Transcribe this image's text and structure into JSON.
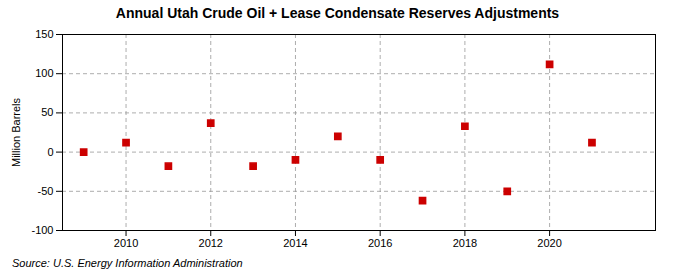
{
  "chart_data": {
    "type": "scatter",
    "title": "Annual Utah Crude Oil + Lease Condensate Reserves Adjustments",
    "ylabel": "Million Barrels",
    "annotation": "Source: U.S. Energy Information Administration",
    "x": [
      2009,
      2010,
      2011,
      2012,
      2013,
      2014,
      2015,
      2016,
      2017,
      2018,
      2019,
      2020,
      2021
    ],
    "values": [
      0.0,
      12.0,
      -18.0,
      37.0,
      -18.0,
      -10.0,
      20.0,
      -10.0,
      -62.0,
      33.0,
      -50.0,
      112.0,
      12.0
    ],
    "xlim": [
      2008.5,
      2022.5
    ],
    "xticks": [
      2010,
      2012,
      2014,
      2016,
      2018,
      2020
    ],
    "ylim": [
      -100,
      150
    ],
    "yticks": [
      -100,
      -50,
      0,
      50,
      100,
      150
    ],
    "color": "#cc0000",
    "marker": "square",
    "grid": true
  }
}
